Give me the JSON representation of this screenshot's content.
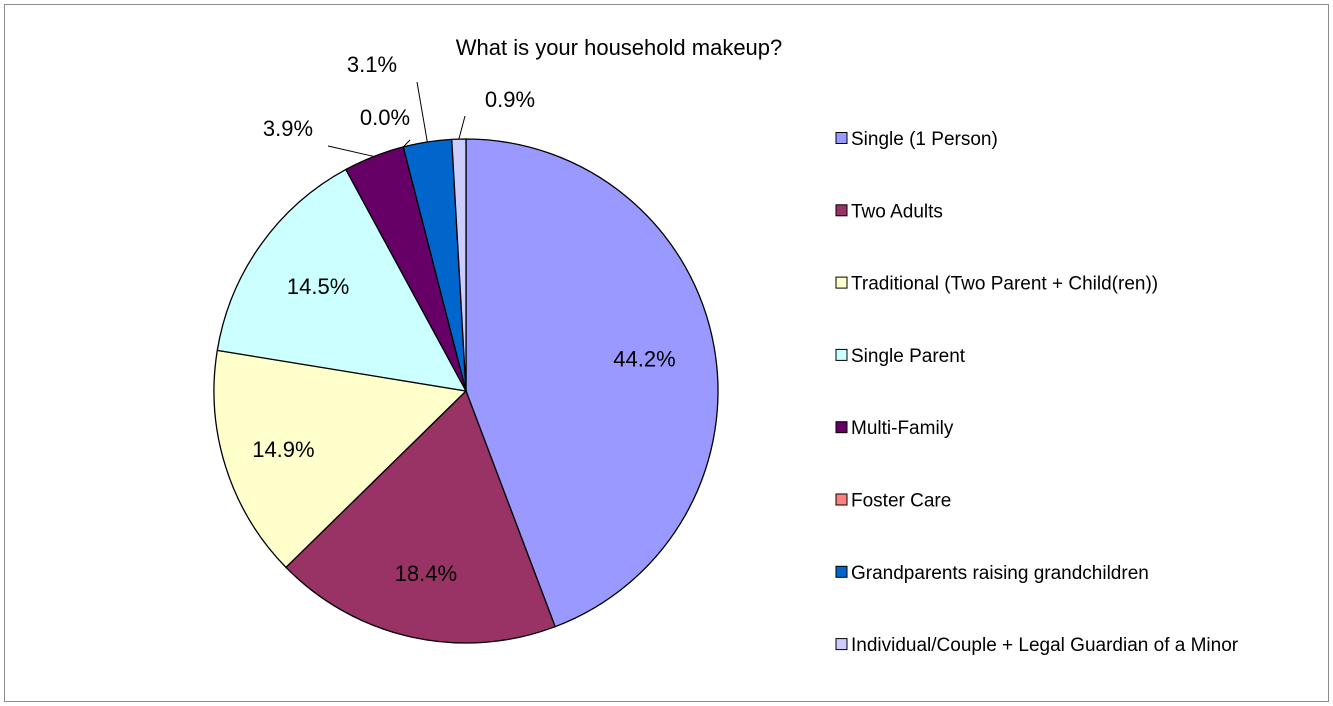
{
  "chart_data": {
    "type": "pie",
    "title": "What is your household makeup?",
    "categories": [
      "Single (1 Person)",
      "Two Adults",
      "Traditional (Two Parent + Child(ren))",
      "Single Parent",
      "Multi-Family",
      "Foster Care",
      "Grandparents raising grandchildren",
      "Individual/Couple + Legal Guardian of a Minor"
    ],
    "values": [
      44.2,
      18.4,
      14.9,
      14.5,
      3.9,
      0.0,
      3.1,
      0.9
    ],
    "data_labels": [
      "44.2%",
      "18.4%",
      "14.9%",
      "14.5%",
      "3.9%",
      "0.0%",
      "3.1%",
      "0.9%"
    ],
    "colors": [
      "#9999ff",
      "#993366",
      "#ffffcc",
      "#ccffff",
      "#660066",
      "#ff8080",
      "#0066cc",
      "#ccccff"
    ],
    "legend_position": "right",
    "start_angle": "12 o'clock, clockwise"
  }
}
